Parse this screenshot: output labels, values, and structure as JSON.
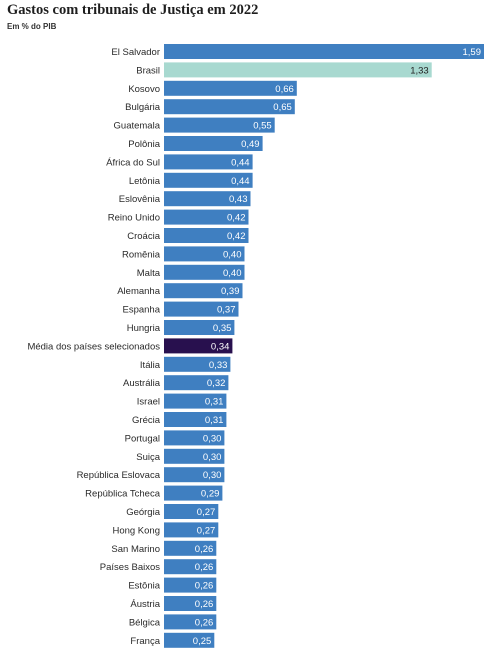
{
  "colors": {
    "default": "#3f7fc1",
    "highlight": "#a8d9d0",
    "average": "#28104e",
    "label_on_dark": "#ffffff",
    "label_on_light": "#222222",
    "category_text": "#2a2a2a"
  },
  "chart_data": {
    "type": "bar",
    "orientation": "horizontal",
    "title": "Gastos com tribunais de Justiça em 2022",
    "subtitle": "Em % do PIB",
    "xlabel": "",
    "ylabel": "",
    "xlim": [
      0,
      1.59
    ],
    "grid": false,
    "legend": "none",
    "categories": [
      "El Salvador",
      "Brasil",
      "Kosovo",
      "Bulgária",
      "Guatemala",
      "Polônia",
      "África do Sul",
      "Letônia",
      "Eslovênia",
      "Reino Unido",
      "Croácia",
      "Romênia",
      "Malta",
      "Alemanha",
      "Espanha",
      "Hungria",
      "Média dos países selecionados",
      "Itália",
      "Austrália",
      "Israel",
      "Grécia",
      "Portugal",
      "Suiça",
      "República Eslovaca",
      "República Tcheca",
      "Geórgia",
      "Hong Kong",
      "San Marino",
      "Países Baixos",
      "Estônia",
      "Áustria",
      "Bélgica",
      "França"
    ],
    "values": [
      1.59,
      1.33,
      0.66,
      0.65,
      0.55,
      0.49,
      0.44,
      0.44,
      0.43,
      0.42,
      0.42,
      0.4,
      0.4,
      0.39,
      0.37,
      0.35,
      0.34,
      0.33,
      0.32,
      0.31,
      0.31,
      0.3,
      0.3,
      0.3,
      0.29,
      0.27,
      0.27,
      0.26,
      0.26,
      0.26,
      0.26,
      0.26,
      0.25
    ],
    "value_labels": [
      "1,59",
      "1,33",
      "0,66",
      "0,65",
      "0,55",
      "0,49",
      "0,44",
      "0,44",
      "0,43",
      "0,42",
      "0,42",
      "0,40",
      "0,40",
      "0,39",
      "0,37",
      "0,35",
      "0,34",
      "0,33",
      "0,32",
      "0,31",
      "0,31",
      "0,30",
      "0,30",
      "0,30",
      "0,29",
      "0,27",
      "0,27",
      "0,26",
      "0,26",
      "0,26",
      "0,26",
      "0,26",
      "0,25"
    ],
    "highlight": {
      "Brasil": "highlight",
      "Média dos países selecionados": "average"
    }
  }
}
